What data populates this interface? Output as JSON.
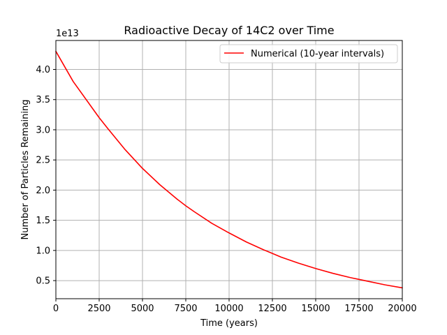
{
  "chart_data": {
    "type": "line",
    "title": "Radioactive Decay of 14C2 over Time",
    "xlabel": "Time (years)",
    "ylabel": "Number of Particles Remaining",
    "y_offset_label": "1e13",
    "y_scale_factor": 10000000000000.0,
    "xlim": [
      0,
      20000
    ],
    "ylim": [
      0.2,
      4.48
    ],
    "x_ticks": [
      0,
      2500,
      5000,
      7500,
      10000,
      12500,
      15000,
      17500,
      20000
    ],
    "x_tick_labels": [
      "0",
      "2500",
      "5000",
      "7500",
      "10000",
      "12500",
      "15000",
      "17500",
      "20000"
    ],
    "y_ticks": [
      0.5,
      1.0,
      1.5,
      2.0,
      2.5,
      3.0,
      3.5,
      4.0
    ],
    "y_tick_labels": [
      "0.5",
      "1.0",
      "1.5",
      "2.0",
      "2.5",
      "3.0",
      "3.5",
      "4.0"
    ],
    "grid": true,
    "legend": {
      "placement": "top-right"
    },
    "series": [
      {
        "name": "Numerical (10-year intervals)",
        "color": "#ff0000",
        "x": [
          0,
          1000,
          2000,
          2500,
          3000,
          4000,
          5000,
          6000,
          7000,
          7500,
          8000,
          9000,
          10000,
          11000,
          12000,
          12500,
          13000,
          14000,
          15000,
          16000,
          17000,
          17500,
          18000,
          19000,
          20000
        ],
        "y": [
          4.3,
          3.8,
          3.4,
          3.2,
          3.02,
          2.67,
          2.36,
          2.09,
          1.85,
          1.74,
          1.64,
          1.45,
          1.29,
          1.14,
          1.01,
          0.95,
          0.89,
          0.79,
          0.7,
          0.62,
          0.55,
          0.52,
          0.49,
          0.43,
          0.38
        ]
      }
    ]
  }
}
